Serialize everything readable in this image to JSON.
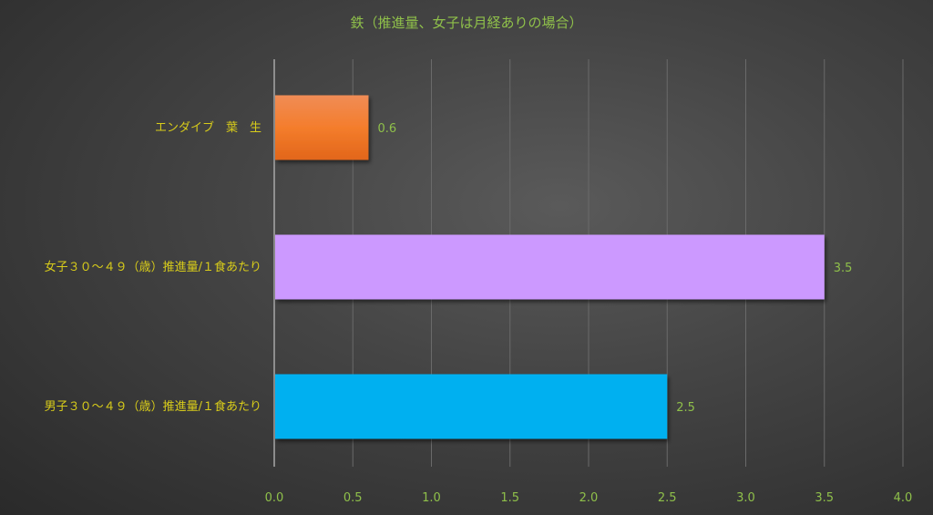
{
  "chart_data": {
    "type": "bar",
    "orientation": "horizontal",
    "title": "鉄（推進量、女子は月経ありの場合）",
    "categories": [
      "エンダイブ　葉　生",
      "女子３０～４９（歳）推進量/１食あたり",
      "男子３０～４９（歳）推進量/１食あたり"
    ],
    "values": [
      0.6,
      3.5,
      2.5
    ],
    "data_labels": [
      "0.6",
      "3.5",
      "2.5"
    ],
    "colors": [
      "#ee7424",
      "#cc99ff",
      "#00b0f0"
    ],
    "xlim": [
      0,
      4.0
    ],
    "xticks": [
      "0.0",
      "0.5",
      "1.0",
      "1.5",
      "2.0",
      "2.5",
      "3.0",
      "3.5",
      "4.0"
    ],
    "grid": true,
    "legend": "none"
  }
}
